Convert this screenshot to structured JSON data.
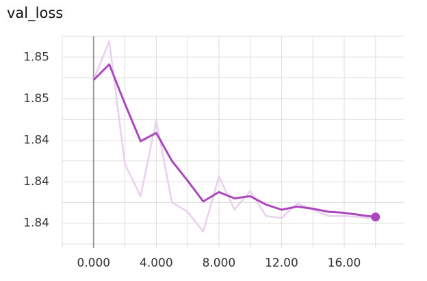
{
  "chart_data": {
    "type": "line",
    "title": "val_loss",
    "x": [
      0,
      1,
      2,
      3,
      4,
      5,
      6,
      7,
      8,
      9,
      10,
      11,
      12,
      13,
      14,
      15,
      16,
      17,
      18
    ],
    "series": [
      {
        "color": "#ead0f0",
        "values": [
          1.8498,
          1.8535,
          1.8417,
          1.8386,
          1.8459,
          1.838,
          1.8371,
          1.8352,
          1.8405,
          1.8373,
          1.8391,
          1.8367,
          1.8365,
          1.8379,
          1.8373,
          1.8367,
          1.8367,
          1.8366,
          1.8364
        ]
      },
      {
        "color": "#ab47bc",
        "values": [
          1.8498,
          1.8513,
          1.8475,
          1.8439,
          1.8447,
          1.842,
          1.8401,
          1.8381,
          1.839,
          1.8384,
          1.8386,
          1.8378,
          1.8373,
          1.8376,
          1.8374,
          1.8371,
          1.837,
          1.8368,
          1.8366
        ]
      }
    ],
    "xlim": [
      -2,
      19.8
    ],
    "ylim": [
      1.834,
      1.854
    ],
    "xticks": [
      {
        "value": 0,
        "label": "0.000"
      },
      {
        "value": 4,
        "label": "4.000"
      },
      {
        "value": 8,
        "label": "8.000"
      },
      {
        "value": 12,
        "label": "12.00"
      },
      {
        "value": 16,
        "label": "16.00"
      }
    ],
    "yticks": [
      {
        "value": 1.852,
        "label": "1.85"
      },
      {
        "value": 1.848,
        "label": "1.85"
      },
      {
        "value": 1.844,
        "label": "1.84"
      },
      {
        "value": 1.84,
        "label": "1.84"
      },
      {
        "value": 1.836,
        "label": "1.84"
      }
    ],
    "x_minor_grid": [
      -2,
      2,
      6,
      10,
      14,
      18
    ],
    "y_minor_grid": [
      1.854,
      1.85,
      1.846,
      1.842,
      1.838,
      1.834
    ],
    "grid": true
  }
}
